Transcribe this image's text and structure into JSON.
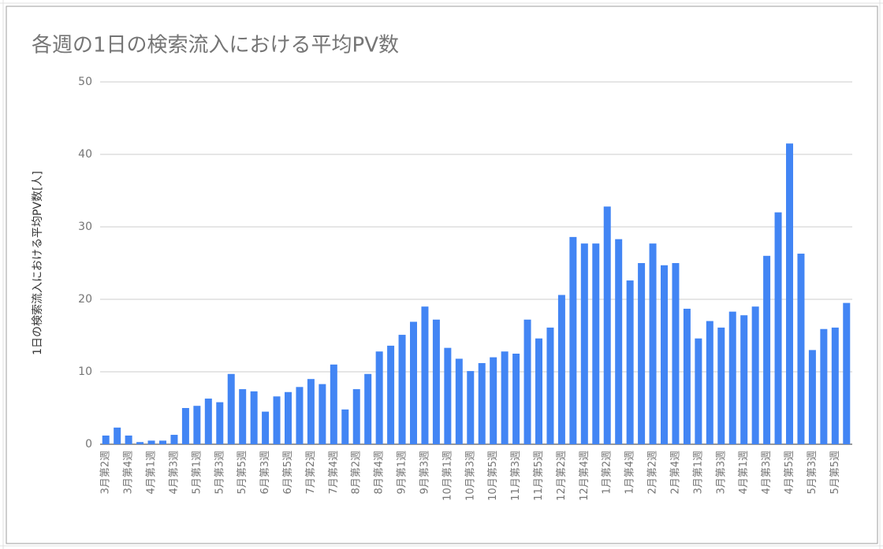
{
  "chart_data": {
    "type": "bar",
    "title": "各週の1日の検索流入における平均PV数",
    "y_label": "1日の検索流入における平均PV数[人]",
    "categories": [
      "3月第2週",
      null,
      "3月第4週",
      null,
      "4月第1週",
      null,
      "4月第3週",
      null,
      "5月第1週",
      null,
      "5月第3週",
      null,
      "5月第5週",
      null,
      "6月第3週",
      null,
      "6月第5週",
      null,
      "7月第2週",
      null,
      "7月第4週",
      null,
      "8月第2週",
      null,
      "8月第4週",
      null,
      "9月第1週",
      null,
      "9月第3週",
      null,
      "10月第1週",
      null,
      "10月第3週",
      null,
      "10月第5週",
      null,
      "11月第3週",
      null,
      "11月第5週",
      null,
      "12月第2週",
      null,
      "12月第4週",
      null,
      "1月第2週",
      null,
      "1月第4週",
      null,
      "2月第2週",
      null,
      "2月第4週",
      null,
      "3月第1週",
      null,
      "3月第3週",
      null,
      "4月第1週",
      null,
      "4月第3週",
      null,
      "4月第5週",
      null,
      "5月第3週",
      null,
      "5月第5週",
      null
    ],
    "values": [
      1.2,
      2.3,
      1.2,
      0.3,
      0.5,
      0.5,
      1.3,
      5.0,
      5.3,
      6.3,
      5.8,
      9.7,
      7.6,
      7.3,
      4.5,
      6.6,
      7.2,
      7.9,
      9.0,
      8.3,
      11.0,
      4.8,
      7.6,
      9.7,
      12.8,
      13.6,
      15.1,
      16.9,
      19.0,
      17.2,
      13.3,
      11.8,
      10.1,
      11.2,
      12.0,
      12.8,
      12.5,
      17.2,
      14.6,
      16.1,
      20.6,
      28.6,
      27.7,
      27.7,
      32.8,
      28.3,
      22.6,
      25.0,
      27.7,
      24.7,
      25.0,
      18.7,
      14.6,
      17.0,
      16.1,
      18.3,
      17.8,
      19.0,
      26.0,
      32.0,
      41.5,
      26.3,
      13.0,
      15.9,
      16.1,
      19.5
    ],
    "color": "#4285f4",
    "ylim": [
      0,
      50
    ],
    "yticks": [
      0,
      10,
      20,
      30,
      40,
      50
    ],
    "grid": true
  }
}
